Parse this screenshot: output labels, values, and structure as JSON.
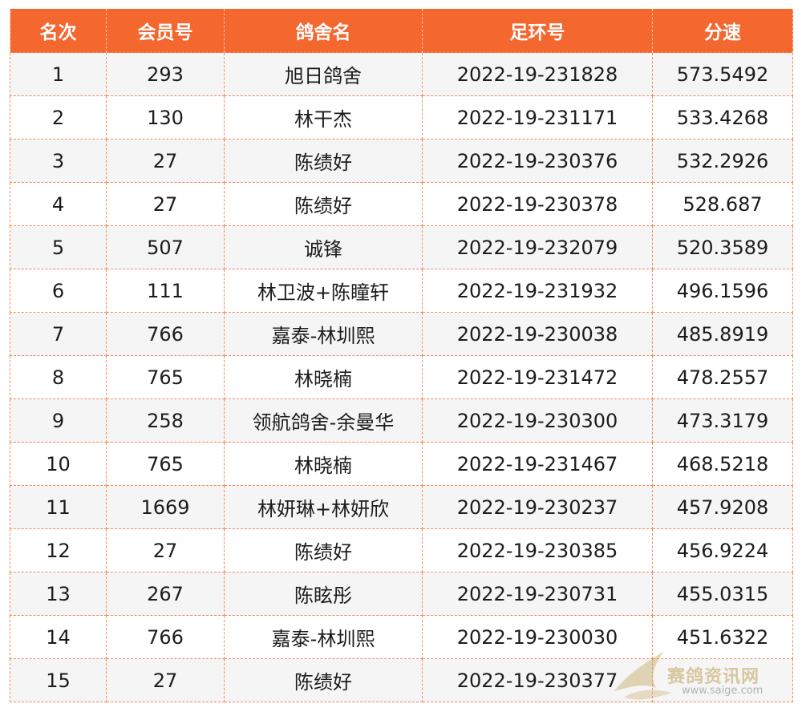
{
  "table": {
    "headers": [
      "名次",
      "会员号",
      "鸽舍名",
      "足环号",
      "分速"
    ],
    "rows": [
      [
        "1",
        "293",
        "旭日鸽舍",
        "2022-19-231828",
        "573.5492"
      ],
      [
        "2",
        "130",
        "林干杰",
        "2022-19-231171",
        "533.4268"
      ],
      [
        "3",
        "27",
        "陈绩好",
        "2022-19-230376",
        "532.2926"
      ],
      [
        "4",
        "27",
        "陈绩好",
        "2022-19-230378",
        "528.687"
      ],
      [
        "5",
        "507",
        "诚锋",
        "2022-19-232079",
        "520.3589"
      ],
      [
        "6",
        "111",
        "林卫波+陈瞳轩",
        "2022-19-231932",
        "496.1596"
      ],
      [
        "7",
        "766",
        "嘉泰-林圳熙",
        "2022-19-230038",
        "485.8919"
      ],
      [
        "8",
        "765",
        "林晓楠",
        "2022-19-231472",
        "478.2557"
      ],
      [
        "9",
        "258",
        "领航鸽舍-余曼华",
        "2022-19-230300",
        "473.3179"
      ],
      [
        "10",
        "765",
        "林晓楠",
        "2022-19-231467",
        "468.5218"
      ],
      [
        "11",
        "1669",
        "林妍琳+林妍欣",
        "2022-19-230237",
        "457.9208"
      ],
      [
        "12",
        "27",
        "陈绩好",
        "2022-19-230385",
        "456.9224"
      ],
      [
        "13",
        "267",
        "陈眩彤",
        "2022-19-230731",
        "455.0315"
      ],
      [
        "14",
        "766",
        "嘉泰-林圳熙",
        "2022-19-230030",
        "451.6322"
      ],
      [
        "15",
        "27",
        "陈绩好",
        "2022-19-230377",
        ""
      ]
    ]
  },
  "watermark": {
    "text": "赛鸽资讯网",
    "url": "www.saige.com"
  },
  "colors": {
    "header_bg": "#f4672f",
    "header_text": "#ffffff",
    "row_alt_bg": "#f5f5f5",
    "border": "#f08a5d"
  }
}
